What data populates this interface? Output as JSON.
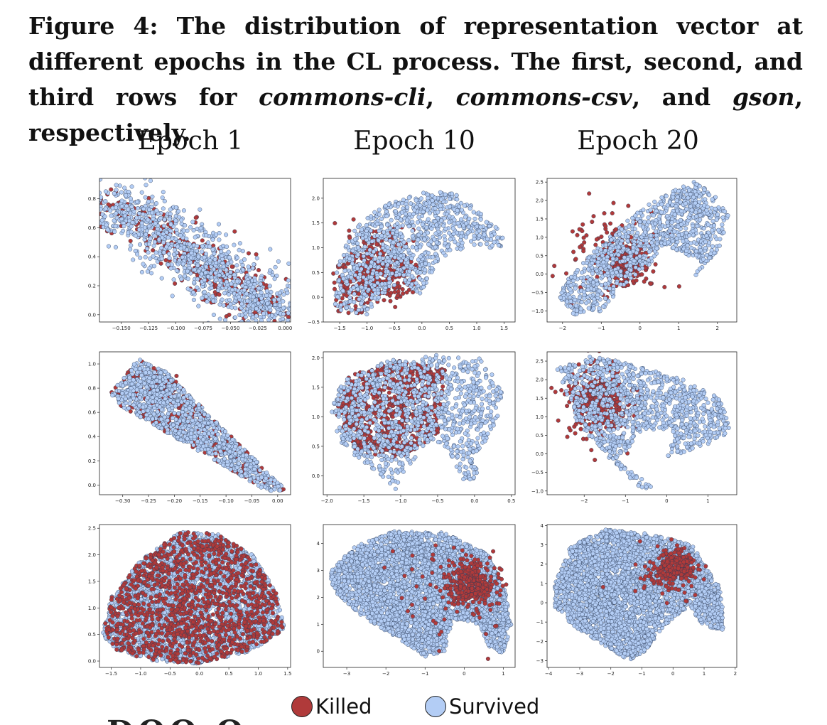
{
  "caption": {
    "label": "Figure 4:",
    "text1": " The distribution of representation vector at different epochs in the CL process. The first, second, and third rows for ",
    "proj1": "commons-cli",
    "sep1": ", ",
    "proj2": "commons-csv",
    "sep2": ", and ",
    "proj3": "gson",
    "text2": ", respectively."
  },
  "column_titles": [
    "Epoch 1",
    "Epoch 10",
    "Epoch 20"
  ],
  "legend": [
    {
      "label": "Killed",
      "color": "#b03a3a"
    },
    {
      "label": "Survived",
      "color": "#b3cdf5"
    }
  ],
  "colors": {
    "killed": "#b03a3a",
    "survived": "#b3cdf5",
    "edge": "#2b3a55"
  },
  "bottom_fragment": "DOO O",
  "chart_data": [
    {
      "type": "scatter",
      "row": "commons-cli",
      "column": "Epoch 1",
      "xlim": [
        -0.17,
        0.005
      ],
      "ylim": [
        -0.05,
        0.94
      ],
      "xticks": [
        -0.15,
        -0.125,
        -0.1,
        -0.075,
        -0.05,
        -0.025,
        0.0
      ],
      "xtick_labels": [
        "−0.150",
        "−0.125",
        "−0.100",
        "−0.075",
        "−0.050",
        "−0.025",
        "0.000"
      ],
      "yticks": [
        0.0,
        0.2,
        0.4,
        0.6,
        0.8
      ],
      "ytick_labels": [
        "0.0",
        "0.2",
        "0.4",
        "0.6",
        "0.8"
      ],
      "series": [
        {
          "name": "Killed",
          "n": 320
        },
        {
          "name": "Survived",
          "n": 1050
        }
      ]
    },
    {
      "type": "scatter",
      "row": "commons-cli",
      "column": "Epoch 10",
      "xlim": [
        -1.8,
        1.7
      ],
      "ylim": [
        -0.5,
        2.4
      ],
      "xticks": [
        -1.5,
        -1.0,
        -0.5,
        0.0,
        0.5,
        1.0,
        1.5
      ],
      "xtick_labels": [
        "−1.5",
        "−1.0",
        "−0.5",
        "0.0",
        "0.5",
        "1.0",
        "1.5"
      ],
      "yticks": [
        -0.5,
        0.0,
        0.5,
        1.0,
        1.5,
        2.0
      ],
      "ytick_labels": [
        "−0.5",
        "0.0",
        "0.5",
        "1.0",
        "1.5",
        "2.0"
      ],
      "series": [
        {
          "name": "Killed",
          "n": 420
        },
        {
          "name": "Survived",
          "n": 950
        }
      ]
    },
    {
      "type": "scatter",
      "row": "commons-cli",
      "column": "Epoch 20",
      "xlim": [
        -2.4,
        2.5
      ],
      "ylim": [
        -1.3,
        2.6
      ],
      "xticks": [
        -2,
        -1,
        0,
        1,
        2
      ],
      "xtick_labels": [
        "−2",
        "−1",
        "0",
        "1",
        "2"
      ],
      "yticks": [
        -1.0,
        -0.5,
        0.0,
        0.5,
        1.0,
        1.5,
        2.0,
        2.5
      ],
      "ytick_labels": [
        "−1.0",
        "−0.5",
        "0.0",
        "0.5",
        "1.0",
        "1.5",
        "2.0",
        "2.5"
      ],
      "series": [
        {
          "name": "Killed",
          "n": 360
        },
        {
          "name": "Survived",
          "n": 1000
        }
      ]
    },
    {
      "type": "scatter",
      "row": "commons-csv",
      "column": "Epoch 1",
      "xlim": [
        -0.345,
        0.025
      ],
      "ylim": [
        -0.08,
        1.1
      ],
      "xticks": [
        -0.3,
        -0.25,
        -0.2,
        -0.15,
        -0.1,
        -0.05,
        0.0
      ],
      "xtick_labels": [
        "−0.30",
        "−0.25",
        "−0.20",
        "−0.15",
        "−0.10",
        "−0.05",
        "0.00"
      ],
      "yticks": [
        0.0,
        0.2,
        0.4,
        0.6,
        0.8,
        1.0
      ],
      "ytick_labels": [
        "0.0",
        "0.2",
        "0.4",
        "0.6",
        "0.8",
        "1.0"
      ],
      "series": [
        {
          "name": "Killed",
          "n": 450
        },
        {
          "name": "Survived",
          "n": 1000
        }
      ]
    },
    {
      "type": "scatter",
      "row": "commons-csv",
      "column": "Epoch 10",
      "xlim": [
        -2.05,
        0.55
      ],
      "ylim": [
        -0.32,
        2.1
      ],
      "xticks": [
        -2.0,
        -1.5,
        -1.0,
        -0.5,
        0.0,
        0.5
      ],
      "xtick_labels": [
        "−2.0",
        "−1.5",
        "−1.0",
        "−0.5",
        "0.0",
        "0.5"
      ],
      "yticks": [
        0.0,
        0.5,
        1.0,
        1.5,
        2.0
      ],
      "ytick_labels": [
        "0.0",
        "0.5",
        "1.0",
        "1.5",
        "2.0"
      ],
      "series": [
        {
          "name": "Killed",
          "n": 800
        },
        {
          "name": "Survived",
          "n": 1100
        }
      ]
    },
    {
      "type": "scatter",
      "row": "commons-csv",
      "column": "Epoch 20",
      "xlim": [
        -2.9,
        1.7
      ],
      "ylim": [
        -1.1,
        2.75
      ],
      "xticks": [
        -2,
        -1,
        0,
        1
      ],
      "xtick_labels": [
        "−2",
        "−1",
        "0",
        "1"
      ],
      "yticks": [
        -1.0,
        -0.5,
        0.0,
        0.5,
        1.0,
        1.5,
        2.0,
        2.5
      ],
      "ytick_labels": [
        "−1.0",
        "−0.5",
        "0.0",
        "0.5",
        "1.0",
        "1.5",
        "2.0",
        "2.5"
      ],
      "series": [
        {
          "name": "Killed",
          "n": 420
        },
        {
          "name": "Survived",
          "n": 1100
        }
      ]
    },
    {
      "type": "scatter",
      "row": "gson",
      "column": "Epoch 1",
      "xlim": [
        -1.7,
        1.55
      ],
      "ylim": [
        -0.12,
        2.57
      ],
      "xticks": [
        -1.5,
        -1.0,
        -0.5,
        0.0,
        0.5,
        1.0,
        1.5
      ],
      "xtick_labels": [
        "−1.5",
        "−1.0",
        "−0.5",
        "0.0",
        "0.5",
        "1.0",
        "1.5"
      ],
      "yticks": [
        0.0,
        0.5,
        1.0,
        1.5,
        2.0,
        2.5
      ],
      "ytick_labels": [
        "0.0",
        "0.5",
        "1.0",
        "1.5",
        "2.0",
        "2.5"
      ],
      "series": [
        {
          "name": "Killed",
          "n": 1300
        },
        {
          "name": "Survived",
          "n": 2600
        }
      ]
    },
    {
      "type": "scatter",
      "row": "gson",
      "column": "Epoch 10",
      "xlim": [
        -3.6,
        1.3
      ],
      "ylim": [
        -0.6,
        4.7
      ],
      "xticks": [
        -3,
        -2,
        -1,
        0,
        1
      ],
      "xtick_labels": [
        "−3",
        "−2",
        "−1",
        "0",
        "1"
      ],
      "yticks": [
        0,
        1,
        2,
        3,
        4
      ],
      "ytick_labels": [
        "0",
        "1",
        "2",
        "3",
        "4"
      ],
      "series": [
        {
          "name": "Killed",
          "n": 420
        },
        {
          "name": "Survived",
          "n": 3700
        }
      ]
    },
    {
      "type": "scatter",
      "row": "gson",
      "column": "Epoch 20",
      "xlim": [
        -4.05,
        2.05
      ],
      "ylim": [
        -3.35,
        4.05
      ],
      "xticks": [
        -4,
        -3,
        -2,
        -1,
        0,
        1,
        2
      ],
      "xtick_labels": [
        "−4",
        "−3",
        "−2",
        "−1",
        "0",
        "1",
        "2"
      ],
      "yticks": [
        -3,
        -2,
        -1,
        0,
        1,
        2,
        3,
        4
      ],
      "ytick_labels": [
        "−3",
        "−2",
        "−1",
        "0",
        "1",
        "2",
        "3",
        "4"
      ],
      "series": [
        {
          "name": "Killed",
          "n": 340
        },
        {
          "name": "Survived",
          "n": 3600
        }
      ]
    }
  ]
}
